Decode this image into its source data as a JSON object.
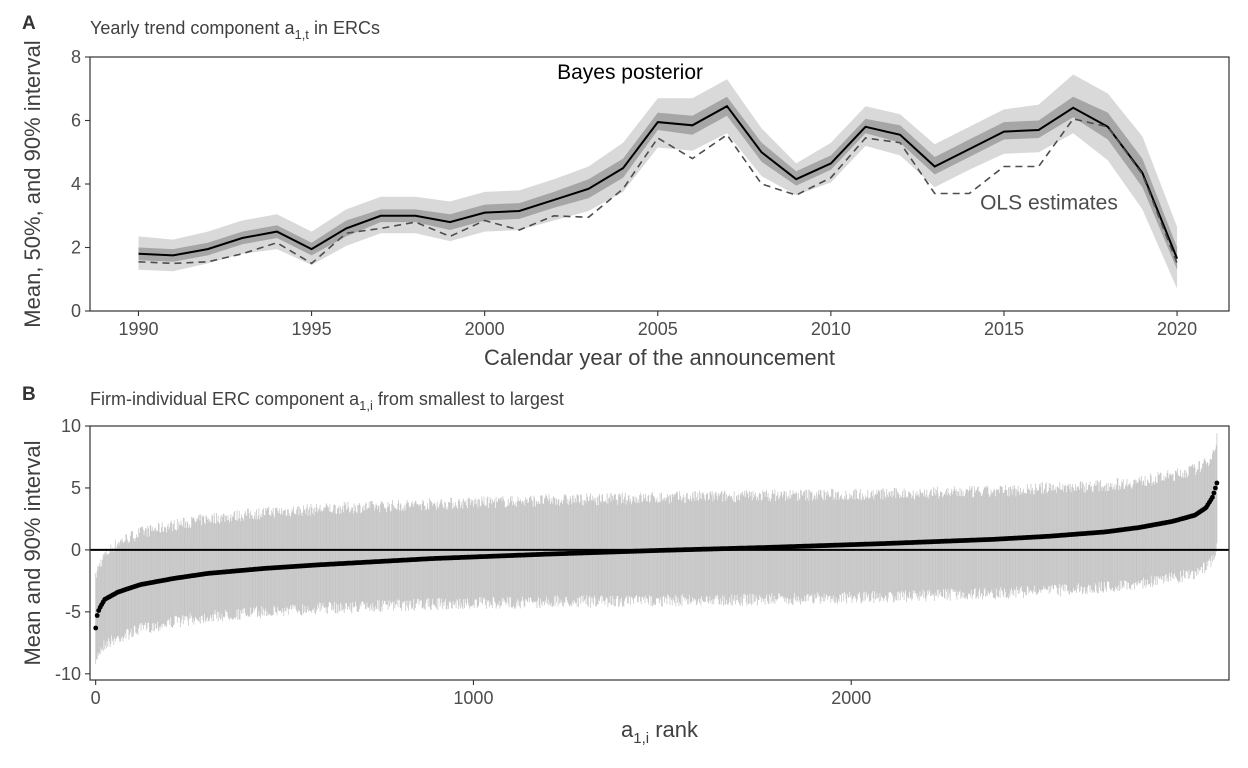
{
  "colors": {
    "outer_band": "#d9d9d9",
    "inner_band": "#a6a6a6",
    "posterior_line": "#000000",
    "ols_line": "#4d4d4d",
    "interval_bar": "#9a9a9a",
    "mean_point": "#000000",
    "frame": "#333333",
    "text": "#404040",
    "tick_text": "#4d4d4d"
  },
  "chart_data": [
    {
      "type": "line",
      "panel_label": "A",
      "title": "Yearly trend component a",
      "title_sub": "1,t",
      "title_suffix": " in ERCs",
      "xlabel": "Calendar year of the announcement",
      "ylabel": "Mean, 50%, and 90% interval",
      "xlim": [
        1988.6,
        2021.5
      ],
      "ylim": [
        0,
        8
      ],
      "x_ticks": [
        1990,
        1995,
        2000,
        2005,
        2010,
        2015,
        2020
      ],
      "y_ticks": [
        0,
        2,
        4,
        6,
        8
      ],
      "grid": false,
      "annotations": [
        {
          "text": "Bayes posterior",
          "x": 2004.2,
          "y": 7.3,
          "color": "#000000"
        },
        {
          "text": "OLS estimates",
          "x": 2016.3,
          "y": 3.2,
          "color": "#4d4d4d"
        }
      ],
      "x": [
        1990,
        1991,
        1992,
        1993,
        1994,
        1995,
        1996,
        1997,
        1998,
        1999,
        2000,
        2001,
        2002,
        2003,
        2004,
        2005,
        2006,
        2007,
        2008,
        2009,
        2010,
        2011,
        2012,
        2013,
        2014,
        2015,
        2016,
        2017,
        2018,
        2019,
        2020
      ],
      "series": [
        {
          "name": "Bayes posterior",
          "style": "solid",
          "role": "mean",
          "values": [
            1.8,
            1.75,
            1.95,
            2.3,
            2.5,
            1.95,
            2.6,
            3.0,
            3.0,
            2.8,
            3.1,
            3.15,
            3.5,
            3.85,
            4.5,
            5.95,
            5.85,
            6.45,
            5.0,
            4.15,
            4.65,
            5.8,
            5.55,
            4.55,
            5.1,
            5.65,
            5.7,
            6.4,
            5.8,
            4.35,
            1.65
          ]
        },
        {
          "name": "OLS estimates",
          "style": "dashed",
          "values": [
            1.55,
            1.5,
            1.55,
            1.8,
            2.15,
            1.5,
            2.45,
            2.6,
            2.8,
            2.35,
            2.85,
            2.55,
            3.0,
            2.95,
            3.85,
            5.45,
            4.8,
            5.55,
            4.0,
            3.65,
            4.2,
            5.45,
            5.3,
            3.7,
            3.7,
            4.55,
            4.55,
            6.05,
            5.8,
            4.3,
            1.5
          ]
        },
        {
          "name": "90% interval",
          "role": "band90",
          "lower": [
            1.3,
            1.25,
            1.5,
            1.8,
            1.95,
            1.45,
            2.05,
            2.45,
            2.45,
            2.2,
            2.5,
            2.55,
            2.85,
            3.15,
            3.75,
            5.15,
            5.05,
            5.6,
            4.25,
            3.65,
            4.05,
            5.2,
            4.9,
            3.9,
            4.45,
            4.95,
            5.0,
            5.6,
            4.75,
            3.2,
            0.7
          ],
          "upper": [
            2.35,
            2.25,
            2.5,
            2.85,
            3.05,
            2.5,
            3.2,
            3.6,
            3.6,
            3.45,
            3.75,
            3.8,
            4.15,
            4.55,
            5.3,
            6.7,
            6.7,
            7.3,
            5.75,
            4.65,
            5.3,
            6.45,
            6.2,
            5.25,
            5.8,
            6.35,
            6.5,
            7.45,
            6.85,
            5.5,
            2.65
          ]
        },
        {
          "name": "50% interval",
          "role": "band50",
          "lower": [
            1.6,
            1.55,
            1.75,
            2.1,
            2.3,
            1.75,
            2.35,
            2.8,
            2.8,
            2.55,
            2.85,
            2.9,
            3.25,
            3.55,
            4.2,
            5.7,
            5.55,
            6.15,
            4.7,
            3.95,
            4.45,
            5.6,
            5.3,
            4.3,
            4.85,
            5.4,
            5.45,
            6.1,
            5.4,
            3.9,
            1.3
          ],
          "upper": [
            2.0,
            1.95,
            2.15,
            2.5,
            2.7,
            2.15,
            2.85,
            3.2,
            3.2,
            3.05,
            3.35,
            3.4,
            3.75,
            4.15,
            4.8,
            6.25,
            6.15,
            6.75,
            5.3,
            4.4,
            4.9,
            6.05,
            5.85,
            4.85,
            5.4,
            5.95,
            6.0,
            6.75,
            6.25,
            4.8,
            2.0
          ]
        }
      ]
    },
    {
      "type": "scatter",
      "panel_label": "B",
      "title": "Firm-individual ERC component a",
      "title_sub": "1,i",
      "title_suffix": " from smallest to largest",
      "xlabel": "a",
      "xlabel_sub": "1,i",
      "xlabel_suffix": " rank",
      "ylabel": "Mean and 90% interval",
      "xlim": [
        -15,
        3000
      ],
      "ylim": [
        -10.5,
        10
      ],
      "x_ticks": [
        0,
        1000,
        2000
      ],
      "y_ticks": [
        -10,
        -5,
        0,
        5,
        10
      ],
      "grid": false,
      "reference_line": 0,
      "n_ranks": 2970,
      "rank_quantile_curve": {
        "description": "mean estimate at rank percentile (0 to 1)",
        "p": [
          0,
          0.001,
          0.003,
          0.008,
          0.02,
          0.04,
          0.07,
          0.1,
          0.15,
          0.2,
          0.3,
          0.4,
          0.5,
          0.6,
          0.7,
          0.8,
          0.85,
          0.9,
          0.93,
          0.96,
          0.98,
          0.99,
          0.996,
          1.0
        ],
        "mean": [
          -6.3,
          -5.4,
          -4.8,
          -4.0,
          -3.4,
          -2.8,
          -2.3,
          -1.9,
          -1.5,
          -1.2,
          -0.7,
          -0.35,
          -0.05,
          0.2,
          0.5,
          0.85,
          1.1,
          1.45,
          1.8,
          2.3,
          2.8,
          3.4,
          4.3,
          5.5
        ],
        "lower90": [
          -9.5,
          -8.5,
          -8.0,
          -7.4,
          -6.9,
          -6.2,
          -5.6,
          -5.2,
          -4.8,
          -4.5,
          -4.2,
          -4.0,
          -3.9,
          -3.8,
          -3.6,
          -3.3,
          -3.1,
          -2.8,
          -2.5,
          -2.1,
          -1.7,
          -1.2,
          -0.6,
          0.3
        ],
        "upper90": [
          -2.5,
          -2.0,
          -1.5,
          -0.6,
          0.4,
          1.2,
          1.8,
          2.3,
          2.8,
          3.1,
          3.5,
          3.8,
          4.0,
          4.2,
          4.3,
          4.5,
          4.8,
          5.0,
          5.3,
          5.8,
          6.3,
          6.8,
          7.5,
          9.0
        ]
      }
    }
  ]
}
